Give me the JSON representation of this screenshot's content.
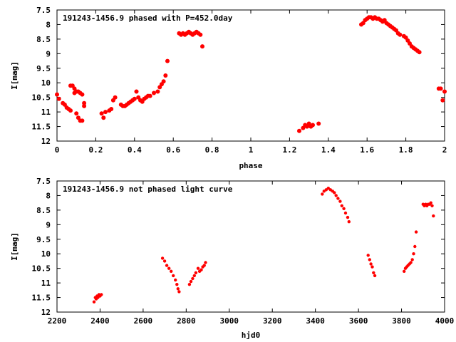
{
  "chart_data": [
    {
      "type": "scatter",
      "title": "191243-1456.9 phased with P=452.0day",
      "xlabel": "phase",
      "ylabel": "I[mag]",
      "xlim": [
        0,
        2
      ],
      "ylim": [
        7.5,
        12
      ],
      "y_inverted": true,
      "grid": false,
      "marker_color": "#ff0000",
      "xticks": [
        "0",
        "0.2",
        "0.4",
        "0.6",
        "0.8",
        "1",
        "1.2",
        "1.4",
        "1.6",
        "1.8",
        "2"
      ],
      "yticks": [
        "7.5",
        "8",
        "8.5",
        "9",
        "9.5",
        "10",
        "10.5",
        "11",
        "11.5",
        "12"
      ],
      "xtick_values": [
        0,
        0.2,
        0.4,
        0.6,
        0.8,
        1,
        1.2,
        1.4,
        1.6,
        1.8,
        2
      ],
      "ytick_values": [
        7.5,
        8,
        8.5,
        9,
        9.5,
        10,
        10.5,
        11,
        11.5,
        12
      ],
      "x": [
        0.0,
        0.01,
        0.03,
        0.04,
        0.05,
        0.06,
        0.07,
        0.07,
        0.08,
        0.09,
        0.1,
        0.1,
        0.11,
        0.12,
        0.13,
        0.09,
        0.1,
        0.11,
        0.12,
        0.13,
        0.14,
        0.14,
        0.23,
        0.24,
        0.25,
        0.27,
        0.28,
        0.29,
        0.3,
        0.33,
        0.34,
        0.35,
        0.36,
        0.37,
        0.38,
        0.39,
        0.4,
        0.41,
        0.42,
        0.43,
        0.44,
        0.45,
        0.46,
        0.47,
        0.48,
        0.5,
        0.52,
        0.53,
        0.54,
        0.55,
        0.56,
        0.57,
        0.63,
        0.64,
        0.65,
        0.66,
        0.67,
        0.68,
        0.69,
        0.7,
        0.71,
        0.72,
        0.73,
        0.74,
        0.75,
        1.25,
        1.27,
        1.28,
        1.29,
        1.3,
        1.31,
        1.32,
        1.35,
        1.57,
        1.58,
        1.59,
        1.6,
        1.61,
        1.62,
        1.63,
        1.64,
        1.65,
        1.66,
        1.67,
        1.68,
        1.69,
        1.7,
        1.71,
        1.72,
        1.73,
        1.74,
        1.75,
        1.76,
        1.77,
        1.79,
        1.8,
        1.81,
        1.82,
        1.83,
        1.84,
        1.85,
        1.86,
        1.87,
        1.97,
        1.98,
        1.99,
        2.0
      ],
      "y": [
        10.4,
        10.55,
        10.7,
        10.75,
        10.85,
        10.9,
        10.95,
        10.1,
        10.1,
        10.2,
        10.3,
        11.05,
        11.2,
        11.3,
        11.3,
        10.35,
        10.3,
        10.3,
        10.35,
        10.4,
        10.7,
        10.8,
        11.05,
        11.2,
        11.0,
        10.95,
        10.9,
        10.6,
        10.5,
        10.75,
        10.8,
        10.8,
        10.75,
        10.7,
        10.65,
        10.6,
        10.55,
        10.3,
        10.5,
        10.6,
        10.65,
        10.55,
        10.5,
        10.45,
        10.45,
        10.35,
        10.3,
        10.15,
        10.05,
        9.95,
        9.75,
        9.25,
        8.3,
        8.35,
        8.3,
        8.35,
        8.3,
        8.25,
        8.3,
        8.35,
        8.3,
        8.25,
        8.3,
        8.35,
        8.75,
        11.65,
        11.55,
        11.45,
        11.5,
        11.4,
        11.5,
        11.45,
        11.4,
        8.0,
        7.95,
        7.85,
        7.8,
        7.75,
        7.75,
        7.8,
        7.75,
        7.8,
        7.8,
        7.85,
        7.9,
        7.85,
        7.95,
        8.0,
        8.05,
        8.1,
        8.15,
        8.2,
        8.3,
        8.35,
        8.4,
        8.45,
        8.55,
        8.65,
        8.75,
        8.8,
        8.85,
        8.9,
        8.95,
        10.2,
        10.2,
        10.6,
        10.3
      ]
    },
    {
      "type": "scatter",
      "title": "191243-1456.9 not phased light curve",
      "xlabel": "hjd0",
      "ylabel": "I[mag]",
      "xlim": [
        2200,
        4000
      ],
      "ylim": [
        7.5,
        12
      ],
      "y_inverted": true,
      "grid": false,
      "marker_color": "#ff0000",
      "xticks": [
        "2200",
        "2400",
        "2600",
        "2800",
        "3000",
        "3200",
        "3400",
        "3600",
        "3800",
        "4000"
      ],
      "yticks": [
        "7.5",
        "8",
        "8.5",
        "9",
        "9.5",
        "10",
        "10.5",
        "11",
        "11.5",
        "12"
      ],
      "xtick_values": [
        2200,
        2400,
        2600,
        2800,
        3000,
        3200,
        3400,
        3600,
        3800,
        4000
      ],
      "ytick_values": [
        7.5,
        8,
        8.5,
        9,
        9.5,
        10,
        10.5,
        11,
        11.5,
        12
      ],
      "x": [
        2372,
        2378,
        2382,
        2386,
        2390,
        2395,
        2400,
        2406,
        2690,
        2700,
        2710,
        2720,
        2730,
        2740,
        2750,
        2757,
        2762,
        2767,
        2815,
        2822,
        2830,
        2838,
        2845,
        2855,
        2862,
        2870,
        2877,
        2884,
        2890,
        3432,
        3440,
        3450,
        3460,
        3470,
        3480,
        3488,
        3496,
        3505,
        3515,
        3523,
        3532,
        3540,
        3550,
        3556,
        3645,
        3652,
        3658,
        3664,
        3670,
        3676,
        3812,
        3818,
        3824,
        3830,
        3837,
        3843,
        3850,
        3856,
        3862,
        3868,
        3900,
        3906,
        3912,
        3918,
        3924,
        3930,
        3936,
        3942,
        3948
      ],
      "y": [
        11.65,
        11.5,
        11.55,
        11.45,
        11.5,
        11.4,
        11.45,
        11.4,
        10.15,
        10.25,
        10.4,
        10.5,
        10.6,
        10.75,
        10.9,
        11.05,
        11.2,
        11.3,
        11.05,
        10.95,
        10.85,
        10.75,
        10.65,
        10.5,
        10.6,
        10.55,
        10.45,
        10.4,
        10.3,
        7.95,
        7.85,
        7.8,
        7.75,
        7.8,
        7.85,
        7.9,
        8.0,
        8.1,
        8.2,
        8.35,
        8.45,
        8.6,
        8.75,
        8.9,
        10.05,
        10.2,
        10.35,
        10.45,
        10.65,
        10.75,
        10.6,
        10.5,
        10.45,
        10.4,
        10.35,
        10.3,
        10.2,
        10.0,
        9.75,
        9.25,
        8.3,
        8.35,
        8.3,
        8.35,
        8.3,
        8.3,
        8.25,
        8.35,
        8.7
      ]
    }
  ]
}
